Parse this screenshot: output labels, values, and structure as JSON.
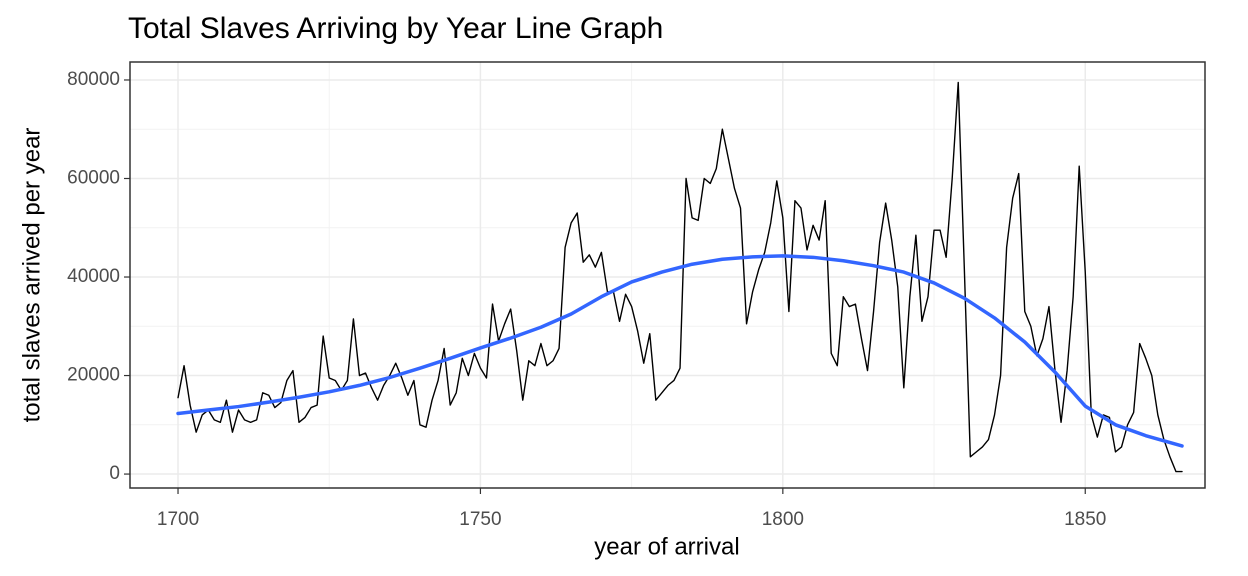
{
  "chart_data": {
    "type": "line",
    "title": "Total Slaves Arriving by Year Line Graph",
    "x_label": "year of arrival",
    "y_label": "total slaves arrived per year",
    "xlim": [
      1692.06,
      1869.8
    ],
    "ylim": [
      -2830,
      83650
    ],
    "xticks": [
      1700,
      1750,
      1800,
      1850
    ],
    "yticks": [
      0,
      20000,
      40000,
      60000,
      80000
    ],
    "x_minor_grid": [
      1725,
      1775,
      1825
    ],
    "y_minor_grid": [
      10000,
      30000,
      50000,
      70000
    ],
    "grid": true,
    "series": [
      {
        "color": "#000000",
        "x": [
          1700,
          1701,
          1702,
          1703,
          1704,
          1705,
          1706,
          1707,
          1708,
          1709,
          1710,
          1711,
          1712,
          1713,
          1714,
          1715,
          1716,
          1717,
          1718,
          1719,
          1720,
          1721,
          1722,
          1723,
          1724,
          1725,
          1726,
          1727,
          1728,
          1729,
          1730,
          1731,
          1732,
          1733,
          1734,
          1735,
          1736,
          1737,
          1738,
          1739,
          1740,
          1741,
          1742,
          1743,
          1744,
          1745,
          1746,
          1747,
          1748,
          1749,
          1750,
          1751,
          1752,
          1753,
          1754,
          1755,
          1756,
          1757,
          1758,
          1759,
          1760,
          1761,
          1762,
          1763,
          1764,
          1765,
          1766,
          1767,
          1768,
          1769,
          1770,
          1771,
          1772,
          1773,
          1774,
          1775,
          1776,
          1777,
          1778,
          1779,
          1780,
          1781,
          1782,
          1783,
          1784,
          1785,
          1786,
          1787,
          1788,
          1789,
          1790,
          1791,
          1792,
          1793,
          1794,
          1795,
          1796,
          1797,
          1798,
          1799,
          1800,
          1801,
          1802,
          1803,
          1804,
          1805,
          1806,
          1807,
          1808,
          1809,
          1810,
          1811,
          1812,
          1813,
          1814,
          1815,
          1816,
          1817,
          1818,
          1819,
          1820,
          1821,
          1822,
          1823,
          1824,
          1825,
          1826,
          1827,
          1828,
          1829,
          1830,
          1831,
          1832,
          1833,
          1834,
          1835,
          1836,
          1837,
          1838,
          1839,
          1840,
          1841,
          1842,
          1843,
          1844,
          1845,
          1846,
          1847,
          1848,
          1849,
          1850,
          1851,
          1852,
          1853,
          1854,
          1855,
          1856,
          1857,
          1858,
          1859,
          1860,
          1861,
          1862,
          1863,
          1864,
          1865,
          1866
        ],
        "values": [
          15500,
          22000,
          14000,
          8500,
          12000,
          13000,
          11000,
          10500,
          15000,
          8500,
          13000,
          11000,
          10500,
          11000,
          16500,
          16000,
          13500,
          14500,
          19000,
          21000,
          10500,
          11500,
          13500,
          14000,
          28000,
          19500,
          19000,
          17000,
          19000,
          31500,
          20000,
          20500,
          17500,
          15000,
          18000,
          20000,
          22500,
          19500,
          16000,
          19000,
          10000,
          9500,
          15000,
          19000,
          25500,
          14000,
          16500,
          23500,
          20000,
          24500,
          21500,
          19500,
          34500,
          27000,
          30500,
          33500,
          25000,
          15000,
          23000,
          22000,
          26500,
          22000,
          23000,
          25500,
          46000,
          51000,
          53000,
          43000,
          44500,
          42000,
          45000,
          37000,
          37000,
          31000,
          36500,
          34000,
          29000,
          22500,
          28500,
          15000,
          16500,
          18000,
          19000,
          21500,
          60000,
          52000,
          51500,
          60000,
          59000,
          62000,
          70000,
          64000,
          58000,
          54000,
          30500,
          37000,
          41500,
          45000,
          51000,
          59500,
          52000,
          33000,
          55500,
          54000,
          45500,
          50500,
          47500,
          55500,
          24500,
          22000,
          36000,
          34000,
          34500,
          27500,
          21000,
          33000,
          47000,
          55000,
          47500,
          38000,
          17500,
          36000,
          48500,
          31000,
          36000,
          49500,
          49500,
          44000,
          60000,
          79500,
          42000,
          3500,
          4500,
          5500,
          7000,
          12000,
          20000,
          46000,
          56000,
          61000,
          33000,
          30000,
          24000,
          27500,
          34000,
          21000,
          10500,
          21000,
          36000,
          62500,
          41000,
          12000,
          7500,
          12000,
          11500,
          4500,
          5500,
          10000,
          12500,
          26500,
          23500,
          20000,
          12000,
          7000,
          3500,
          500,
          500
        ]
      },
      {
        "color": "#3366FF",
        "x": [
          1700,
          1705,
          1710,
          1715,
          1720,
          1725,
          1730,
          1735,
          1740,
          1745,
          1750,
          1755,
          1760,
          1765,
          1770,
          1775,
          1780,
          1785,
          1790,
          1795,
          1800,
          1805,
          1810,
          1815,
          1820,
          1825,
          1830,
          1835,
          1840,
          1845,
          1850,
          1855,
          1860,
          1866
        ],
        "values": [
          12300,
          13000,
          13700,
          14600,
          15600,
          16700,
          18000,
          19600,
          21500,
          23500,
          25600,
          27600,
          29800,
          32500,
          36000,
          39000,
          41000,
          42600,
          43600,
          44100,
          44300,
          44000,
          43300,
          42300,
          41000,
          38800,
          35700,
          31700,
          26800,
          20700,
          13800,
          10000,
          7800,
          5700
        ]
      }
    ]
  }
}
